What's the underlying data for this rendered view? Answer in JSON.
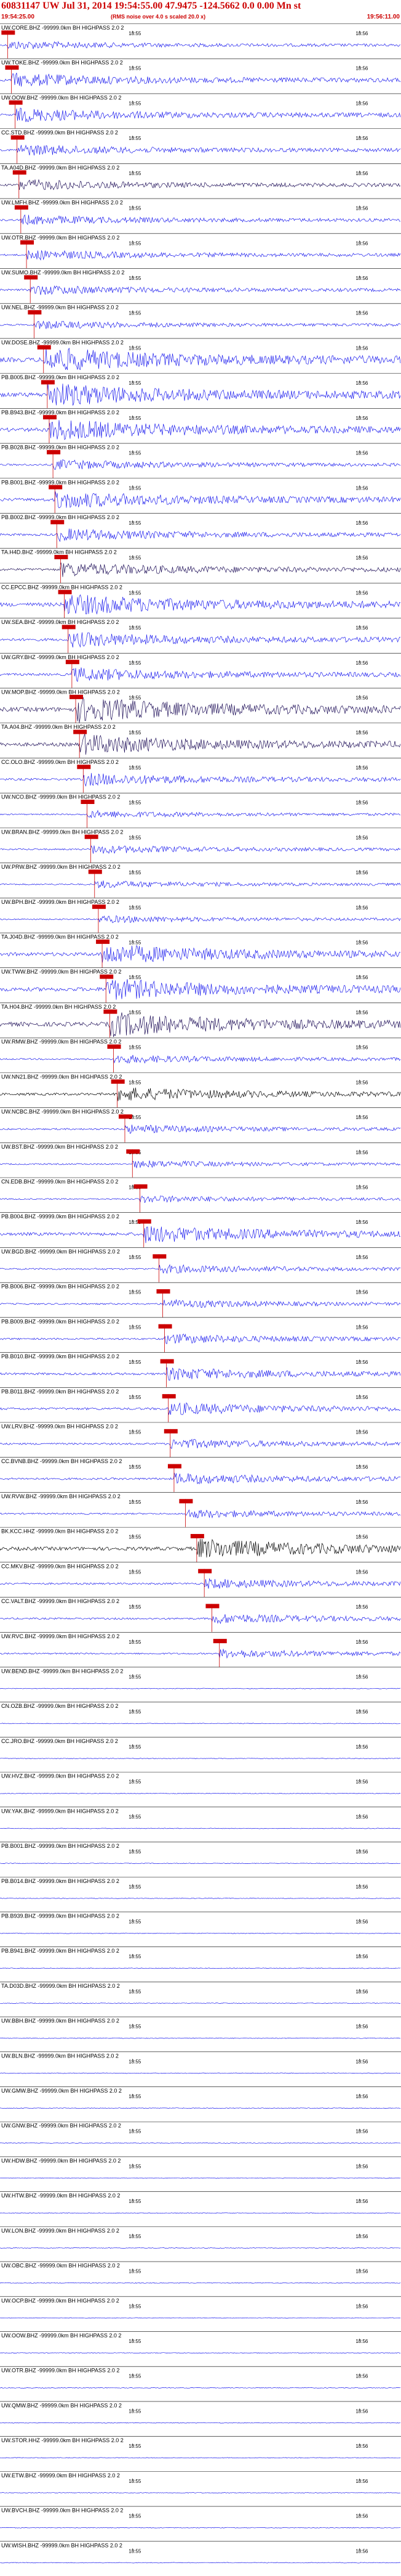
{
  "header": {
    "title": "60831147  UW  Jul 31, 2014  19:54:55.00     47.9475  -124.5662    0.0  0.00  Mn  st   ",
    "start_time": "19:54:25.00",
    "note": "(RMS noise over 4.0 s scaled 20.0 x)",
    "end_time": "19:56:11.00"
  },
  "colors": {
    "blue": "#1a1aee",
    "navy": "#1a0a55",
    "black": "#000000",
    "pick": "#cc0000",
    "sep": "#000000"
  },
  "chart_data": {
    "type": "line",
    "title": "60831147 UW Jul 31, 2014 19:54:55.00 47.9475 -124.5662 0.0 0.00 Mn st",
    "time_start": "19:54:25.00",
    "time_end": "19:56:11.00",
    "tick_labels": [
      "18:55",
      "18:56"
    ],
    "tick_seconds": [
      35,
      95
    ],
    "duration_s": 106,
    "filter_suffix": "-99999.0km BH HIGHPASS  2.0  2",
    "series": [
      {
        "name": "UW.CORE.BHZ",
        "color": "blue",
        "amp": 0.35,
        "pick_s": 2.0
      },
      {
        "name": "UW.TOKE.BHZ",
        "color": "blue",
        "amp": 0.55,
        "pick_s": 3.0
      },
      {
        "name": "UW.OOW.BHZ",
        "color": "blue",
        "amp": 0.55,
        "pick_s": 4.0
      },
      {
        "name": "CC.STD.BHZ",
        "color": "blue",
        "amp": 0.45,
        "pick_s": 4.5
      },
      {
        "name": "TA.A04D.BHZ",
        "color": "navy",
        "amp": 0.45,
        "pick_s": 5.0
      },
      {
        "name": "UW.LMFH.BHZ",
        "color": "blue",
        "amp": 0.4,
        "pick_s": 5.5
      },
      {
        "name": "UW.OTR.BHZ",
        "color": "blue",
        "amp": 0.4,
        "pick_s": 7.0
      },
      {
        "name": "UW.SUMO.BHZ",
        "color": "blue",
        "amp": 0.4,
        "pick_s": 8.0
      },
      {
        "name": "UW.NEL.BHZ",
        "color": "blue",
        "amp": 0.35,
        "pick_s": 9.0
      },
      {
        "name": "UW.DOSE.BHZ",
        "color": "blue",
        "amp": 1.0,
        "pick_s": 11.5
      },
      {
        "name": "PB.B005.BHZ",
        "color": "blue",
        "amp": 0.95,
        "pick_s": 12.5
      },
      {
        "name": "PB.B943.BHZ",
        "color": "blue",
        "amp": 0.85,
        "pick_s": 13.0
      },
      {
        "name": "PB.B028.BHZ",
        "color": "blue",
        "amp": 0.4,
        "pick_s": 14.0
      },
      {
        "name": "PB.B001.BHZ",
        "color": "blue",
        "amp": 0.7,
        "pick_s": 14.5
      },
      {
        "name": "PB.B002.BHZ",
        "color": "blue",
        "amp": 0.5,
        "pick_s": 15.0
      },
      {
        "name": "TA.H4D.BHZ",
        "color": "navy",
        "amp": 0.55,
        "pick_s": 16.0
      },
      {
        "name": "CC.EPCC.BHZ",
        "color": "blue",
        "amp": 0.85,
        "pick_s": 17.0
      },
      {
        "name": "UW.SEA.BHZ",
        "color": "blue",
        "amp": 0.6,
        "pick_s": 18.0
      },
      {
        "name": "UW.GRY.BHZ",
        "color": "blue",
        "amp": 0.55,
        "pick_s": 19.0
      },
      {
        "name": "UW.MOP.BHZ",
        "color": "navy",
        "amp": 1.0,
        "pick_s": 20.0
      },
      {
        "name": "TA.A04.BHZ",
        "color": "navy",
        "amp": 0.8,
        "pick_s": 21.0
      },
      {
        "name": "CC.OLO.BHZ",
        "color": "blue",
        "amp": 0.5,
        "pick_s": 22.0
      },
      {
        "name": "UW.NCO.BHZ",
        "color": "blue",
        "amp": 0.3,
        "pick_s": 23.0
      },
      {
        "name": "UW.BRAN.BHZ",
        "color": "blue",
        "amp": 0.35,
        "pick_s": 24.0
      },
      {
        "name": "UW.PRW.BHZ",
        "color": "blue",
        "amp": 0.3,
        "pick_s": 25.0
      },
      {
        "name": "UW.BPH.BHZ",
        "color": "blue",
        "amp": 0.3,
        "pick_s": 26.0
      },
      {
        "name": "TA.J04D.BHZ",
        "color": "blue",
        "amp": 0.8,
        "pick_s": 27.0
      },
      {
        "name": "UW.TWW.BHZ",
        "color": "blue",
        "amp": 0.85,
        "pick_s": 28.0
      },
      {
        "name": "TA.H04.BHZ",
        "color": "navy",
        "amp": 0.95,
        "pick_s": 29.0
      },
      {
        "name": "UW.RMW.BHZ",
        "color": "blue",
        "amp": 0.35,
        "pick_s": 30.0
      },
      {
        "name": "UW.NN21.BHZ",
        "color": "black",
        "amp": 0.55,
        "pick_s": 31.0
      },
      {
        "name": "UW.NCBC.BHZ",
        "color": "blue",
        "amp": 0.35,
        "pick_s": 33.0
      },
      {
        "name": "UW.BST.BHZ",
        "color": "blue",
        "amp": 0.3,
        "pick_s": 35.0
      },
      {
        "name": "CN.EDB.BHZ",
        "color": "blue",
        "amp": 0.3,
        "pick_s": 37.0
      },
      {
        "name": "PB.B004.BHZ",
        "color": "blue",
        "amp": 0.7,
        "pick_s": 38.0
      },
      {
        "name": "UW.BGD.BHZ",
        "color": "blue",
        "amp": 0.35,
        "pick_s": 42.0
      },
      {
        "name": "PB.B006.BHZ",
        "color": "blue",
        "amp": 0.35,
        "pick_s": 43.0
      },
      {
        "name": "PB.B009.BHZ",
        "color": "blue",
        "amp": 0.4,
        "pick_s": 43.5
      },
      {
        "name": "PB.B010.BHZ",
        "color": "blue",
        "amp": 0.5,
        "pick_s": 44.0
      },
      {
        "name": "PB.B011.BHZ",
        "color": "blue",
        "amp": 0.5,
        "pick_s": 44.5
      },
      {
        "name": "UW.LRV.BHZ",
        "color": "blue",
        "amp": 0.4,
        "pick_s": 45.0
      },
      {
        "name": "CC.BVNB.BHZ",
        "color": "blue",
        "amp": 0.45,
        "pick_s": 46.0
      },
      {
        "name": "UW.RVW.BHZ",
        "color": "blue",
        "amp": 0.35,
        "pick_s": 49.0
      },
      {
        "name": "BK.KCC.HHZ",
        "color": "black",
        "amp": 0.8,
        "pick_s": 52.0
      },
      {
        "name": "CC.MKV.BHZ",
        "color": "blue",
        "amp": 0.4,
        "pick_s": 54.0
      },
      {
        "name": "CC.VALT.BHZ",
        "color": "blue",
        "amp": 0.4,
        "pick_s": 56.0
      },
      {
        "name": "UW.RVC.BHZ",
        "color": "blue",
        "amp": 0.35,
        "pick_s": 58.0
      },
      {
        "name": "UW.BEND.BHZ",
        "color": "blue",
        "amp": 0.15,
        "pick_s": null
      },
      {
        "name": "CN.OZB.BHZ",
        "color": "blue",
        "amp": 0.15,
        "pick_s": null
      },
      {
        "name": "CC.JRO.BHZ",
        "color": "blue",
        "amp": 0.15,
        "pick_s": null
      },
      {
        "name": "UW.HVZ.BHZ",
        "color": "blue",
        "amp": 0.15,
        "pick_s": null
      },
      {
        "name": "UW.YAK.BHZ",
        "color": "blue",
        "amp": 0.15,
        "pick_s": null
      },
      {
        "name": "PB.B001.BHZ",
        "color": "blue",
        "amp": 0.15,
        "pick_s": null
      },
      {
        "name": "PB.B014.BHZ",
        "color": "blue",
        "amp": 0.15,
        "pick_s": null
      },
      {
        "name": "PB.B939.BHZ",
        "color": "blue",
        "amp": 0.15,
        "pick_s": null
      },
      {
        "name": "PB.B941.BHZ",
        "color": "blue",
        "amp": 0.15,
        "pick_s": null
      },
      {
        "name": "TA.D03D.BHZ",
        "color": "blue",
        "amp": 0.15,
        "pick_s": null
      },
      {
        "name": "UW.BBH.BHZ",
        "color": "blue",
        "amp": 0.15,
        "pick_s": null
      },
      {
        "name": "UW.BLN.BHZ",
        "color": "blue",
        "amp": 0.15,
        "pick_s": null
      },
      {
        "name": "UW.GMW.BHZ",
        "color": "blue",
        "amp": 0.15,
        "pick_s": null
      },
      {
        "name": "UW.GNW.BHZ",
        "color": "blue",
        "amp": 0.15,
        "pick_s": null
      },
      {
        "name": "UW.HDW.BHZ",
        "color": "blue",
        "amp": 0.15,
        "pick_s": null
      },
      {
        "name": "UW.HTW.BHZ",
        "color": "blue",
        "amp": 0.15,
        "pick_s": null
      },
      {
        "name": "UW.LON.BHZ",
        "color": "blue",
        "amp": 0.15,
        "pick_s": null
      },
      {
        "name": "UW.OBC.BHZ",
        "color": "blue",
        "amp": 0.15,
        "pick_s": null
      },
      {
        "name": "UW.OCP.BHZ",
        "color": "blue",
        "amp": 0.15,
        "pick_s": null
      },
      {
        "name": "UW.OOW.BHZ",
        "color": "blue",
        "amp": 0.15,
        "pick_s": null
      },
      {
        "name": "UW.OTR.BHZ",
        "color": "blue",
        "amp": 0.15,
        "pick_s": null
      },
      {
        "name": "UW.QMW.BHZ",
        "color": "blue",
        "amp": 0.15,
        "pick_s": null
      },
      {
        "name": "UW.STOR.HHZ",
        "color": "blue",
        "amp": 0.15,
        "pick_s": null
      },
      {
        "name": "UW.ETW.BHZ",
        "color": "blue",
        "amp": 0.15,
        "pick_s": null
      },
      {
        "name": "UW.BVCH.BHZ",
        "color": "blue",
        "amp": 0.15,
        "pick_s": null
      },
      {
        "name": "UW.WISH.BHZ",
        "color": "blue",
        "amp": 0.15,
        "pick_s": null
      }
    ]
  }
}
